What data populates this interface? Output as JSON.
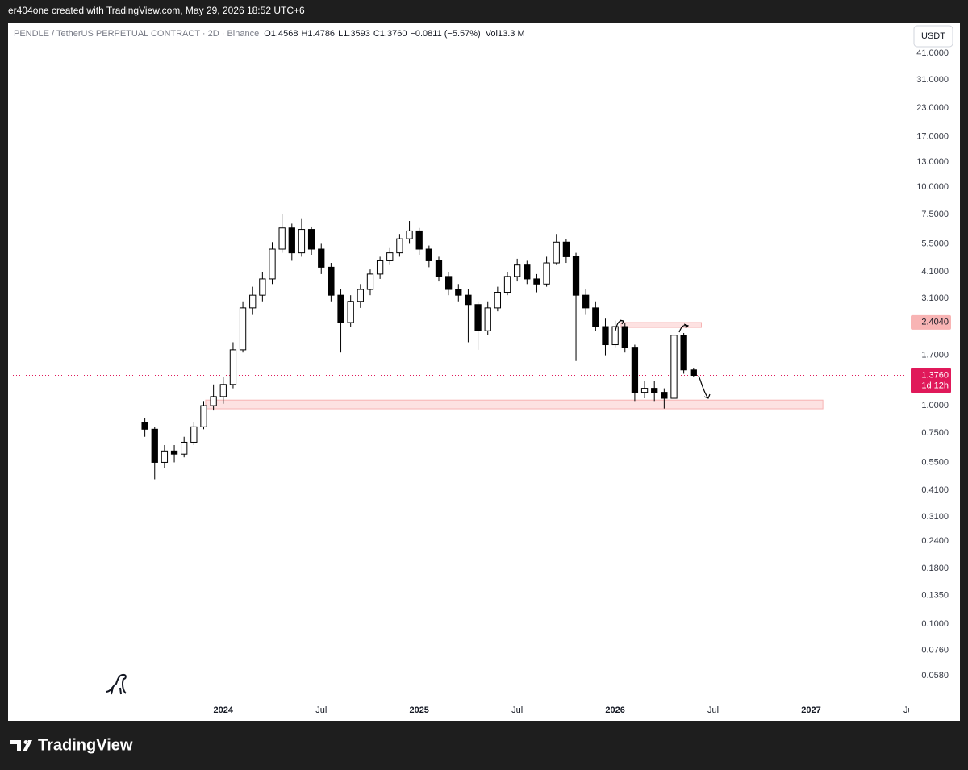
{
  "header": {
    "title": "er404one created with TradingView.com, May 29, 2026 18:52 UTC+6",
    "symbol": "PENDLE / TetherUS PERPETUAL CONTRACT · 2D · Binance",
    "ohlc_labels": [
      "O",
      "H",
      "L",
      "C"
    ],
    "change": "−0.0811 (−5.57%)",
    "volume_label": "Vol",
    "volume": "13.3 M",
    "currency": "USDT"
  },
  "footer": {
    "brand": "TradingView"
  },
  "chart_data": {
    "type": "candlestick",
    "log_scale": true,
    "up_color": "#ffffff",
    "down_color": "#000000",
    "wick_color": "#000000",
    "x": [
      2023.6,
      2023.65,
      2023.7,
      2023.75,
      2023.8,
      2023.85,
      2023.9,
      2023.95,
      2024.0,
      2024.05,
      2024.1,
      2024.15,
      2024.2,
      2024.25,
      2024.3,
      2024.35,
      2024.4,
      2024.45,
      2024.5,
      2024.55,
      2024.6,
      2024.65,
      2024.7,
      2024.75,
      2024.8,
      2024.85,
      2024.9,
      2024.95,
      2025.0,
      2025.05,
      2025.1,
      2025.15,
      2025.2,
      2025.25,
      2025.3,
      2025.35,
      2025.4,
      2025.45,
      2025.5,
      2025.55,
      2025.6,
      2025.65,
      2025.7,
      2025.75,
      2025.8,
      2025.85,
      2025.9,
      2025.95,
      2026.0,
      2026.05,
      2026.1,
      2026.15,
      2026.2,
      2026.25,
      2026.3,
      2026.35,
      2026.4
    ],
    "open": [
      0.84,
      0.78,
      0.55,
      0.62,
      0.6,
      0.68,
      0.8,
      1.0,
      1.1,
      1.25,
      1.8,
      2.8,
      3.2,
      3.8,
      5.2,
      6.5,
      5.0,
      6.4,
      5.2,
      4.3,
      3.2,
      2.4,
      3.0,
      3.4,
      4.0,
      4.6,
      5.0,
      5.8,
      6.3,
      5.2,
      4.6,
      3.9,
      3.4,
      3.2,
      2.9,
      2.2,
      2.8,
      3.3,
      3.9,
      4.4,
      3.8,
      3.6,
      4.5,
      5.6,
      4.8,
      3.2,
      2.8,
      2.3,
      1.9,
      2.3,
      1.85,
      1.15,
      1.2,
      1.15,
      1.08,
      2.1,
      1.4568
    ],
    "high": [
      0.88,
      0.8,
      0.66,
      0.66,
      0.72,
      0.84,
      1.05,
      1.25,
      1.35,
      1.95,
      3.0,
      3.5,
      4.1,
      5.6,
      7.5,
      6.8,
      7.2,
      6.6,
      5.5,
      4.5,
      3.4,
      3.2,
      3.6,
      4.2,
      4.8,
      5.3,
      6.1,
      7.0,
      6.5,
      5.4,
      4.8,
      4.1,
      3.6,
      3.4,
      3.0,
      3.0,
      3.5,
      4.1,
      4.7,
      4.6,
      4.0,
      4.8,
      6.1,
      5.8,
      5.0,
      3.4,
      3.0,
      2.5,
      2.45,
      2.4,
      1.9,
      1.3,
      1.3,
      1.2,
      2.35,
      2.15,
      1.4786
    ],
    "low": [
      0.72,
      0.46,
      0.52,
      0.55,
      0.58,
      0.66,
      0.78,
      0.95,
      1.02,
      1.2,
      1.75,
      2.6,
      3.0,
      3.6,
      5.0,
      4.6,
      4.8,
      4.9,
      4.0,
      3.0,
      1.75,
      2.3,
      2.8,
      3.2,
      3.8,
      4.4,
      4.8,
      5.5,
      4.9,
      4.3,
      3.7,
      3.2,
      3.0,
      1.95,
      1.8,
      2.1,
      2.7,
      3.2,
      3.7,
      3.6,
      3.3,
      3.5,
      4.4,
      4.5,
      1.6,
      2.6,
      2.2,
      1.7,
      1.85,
      1.75,
      1.05,
      1.08,
      1.05,
      0.97,
      1.05,
      1.4,
      1.3593
    ],
    "close": [
      0.78,
      0.55,
      0.62,
      0.6,
      0.68,
      0.8,
      1.0,
      1.1,
      1.25,
      1.8,
      2.8,
      3.2,
      3.8,
      5.2,
      6.5,
      5.0,
      6.4,
      5.2,
      4.3,
      3.2,
      2.4,
      3.0,
      3.4,
      4.0,
      4.6,
      5.0,
      5.8,
      6.3,
      5.2,
      4.6,
      3.9,
      3.4,
      3.2,
      2.9,
      2.2,
      2.8,
      3.3,
      3.9,
      4.4,
      3.8,
      3.6,
      4.5,
      5.6,
      4.8,
      3.2,
      2.8,
      2.3,
      1.9,
      2.3,
      1.85,
      1.15,
      1.2,
      1.15,
      1.08,
      2.1,
      1.4571,
      1.376
    ],
    "xlim": [
      2022.91,
      2027.5
    ],
    "xticks": [
      2024,
      {
        "value": 2024.5,
        "label": "Jul"
      },
      2025,
      {
        "value": 2025.5,
        "label": "Jul"
      },
      2026,
      {
        "value": 2026.5,
        "label": "Jul"
      },
      2027,
      {
        "value": 2027.5,
        "label": "Jul"
      }
    ],
    "ylim": [
      0.0462,
      56.6
    ],
    "yticks": [
      {
        "value": 41,
        "label": "41.0000"
      },
      {
        "value": 31,
        "label": "31.0000"
      },
      {
        "value": 23,
        "label": "23.0000"
      },
      {
        "value": 17,
        "label": "17.0000"
      },
      {
        "value": 13,
        "label": "13.0000"
      },
      {
        "value": 10,
        "label": "10.0000"
      },
      {
        "value": 7.5,
        "label": "7.5000"
      },
      {
        "value": 5.5,
        "label": "5.5000"
      },
      {
        "value": 4.1,
        "label": "4.1000"
      },
      {
        "value": 3.1,
        "label": "3.1000"
      },
      {
        "value": 1.7,
        "label": "1.7000"
      },
      {
        "value": 1,
        "label": "1.0000"
      },
      {
        "value": 0.75,
        "label": "0.7500"
      },
      {
        "value": 0.55,
        "label": "0.5500"
      },
      {
        "value": 0.41,
        "label": "0.4100"
      },
      {
        "value": 0.31,
        "label": "0.3100"
      },
      {
        "value": 0.24,
        "label": "0.2400"
      },
      {
        "value": 0.18,
        "label": "0.1800"
      },
      {
        "value": 0.135,
        "label": "0.1350"
      },
      {
        "value": 0.1,
        "label": "0.1000"
      },
      {
        "value": 0.076,
        "label": "0.0760"
      },
      {
        "value": 0.058,
        "label": "0.0580"
      }
    ],
    "zones": [
      {
        "x": [
          2023.91,
          2027.06
        ],
        "y": [
          0.967,
          1.06
        ]
      },
      {
        "x": [
          2026.03,
          2026.44
        ],
        "y": [
          2.28,
          2.4
        ]
      }
    ],
    "marker_price": {
      "value": 2.404,
      "label": "2.4040"
    },
    "last_price": {
      "value": 1.376,
      "label": "1.3760"
    },
    "countdown": "1d 12h"
  }
}
